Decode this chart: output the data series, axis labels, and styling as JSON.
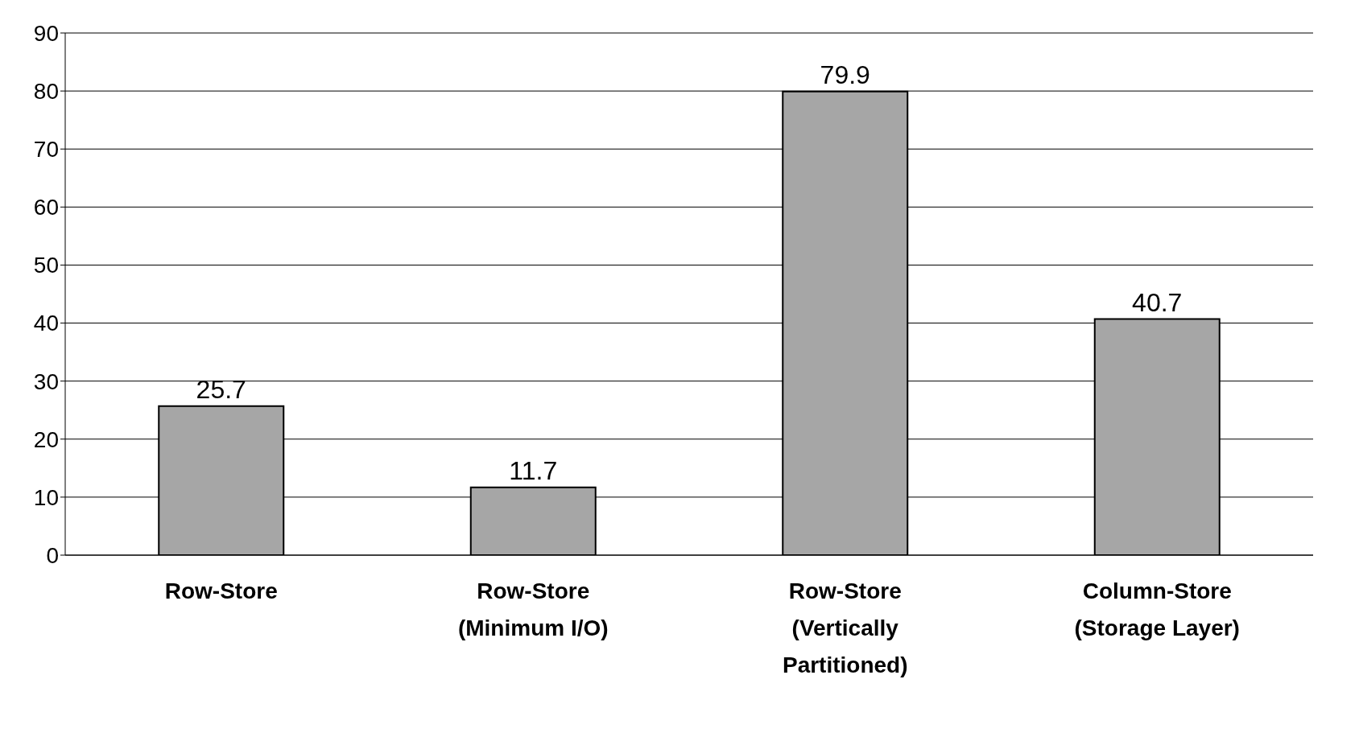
{
  "chart_data": {
    "type": "bar",
    "categories": [
      "Row-Store",
      "Row-Store\n(Minimum I/O)",
      "Row-Store\n(Vertically\nPartitioned)",
      "Column-Store\n(Storage Layer)"
    ],
    "values": [
      25.7,
      11.7,
      79.9,
      40.7
    ],
    "color": "#a6a6a6",
    "ylim": [
      0,
      90
    ],
    "yticks": [
      0,
      10,
      20,
      30,
      40,
      50,
      60,
      70,
      80,
      90
    ],
    "grid": "y",
    "data_labels": true,
    "legend": false
  }
}
